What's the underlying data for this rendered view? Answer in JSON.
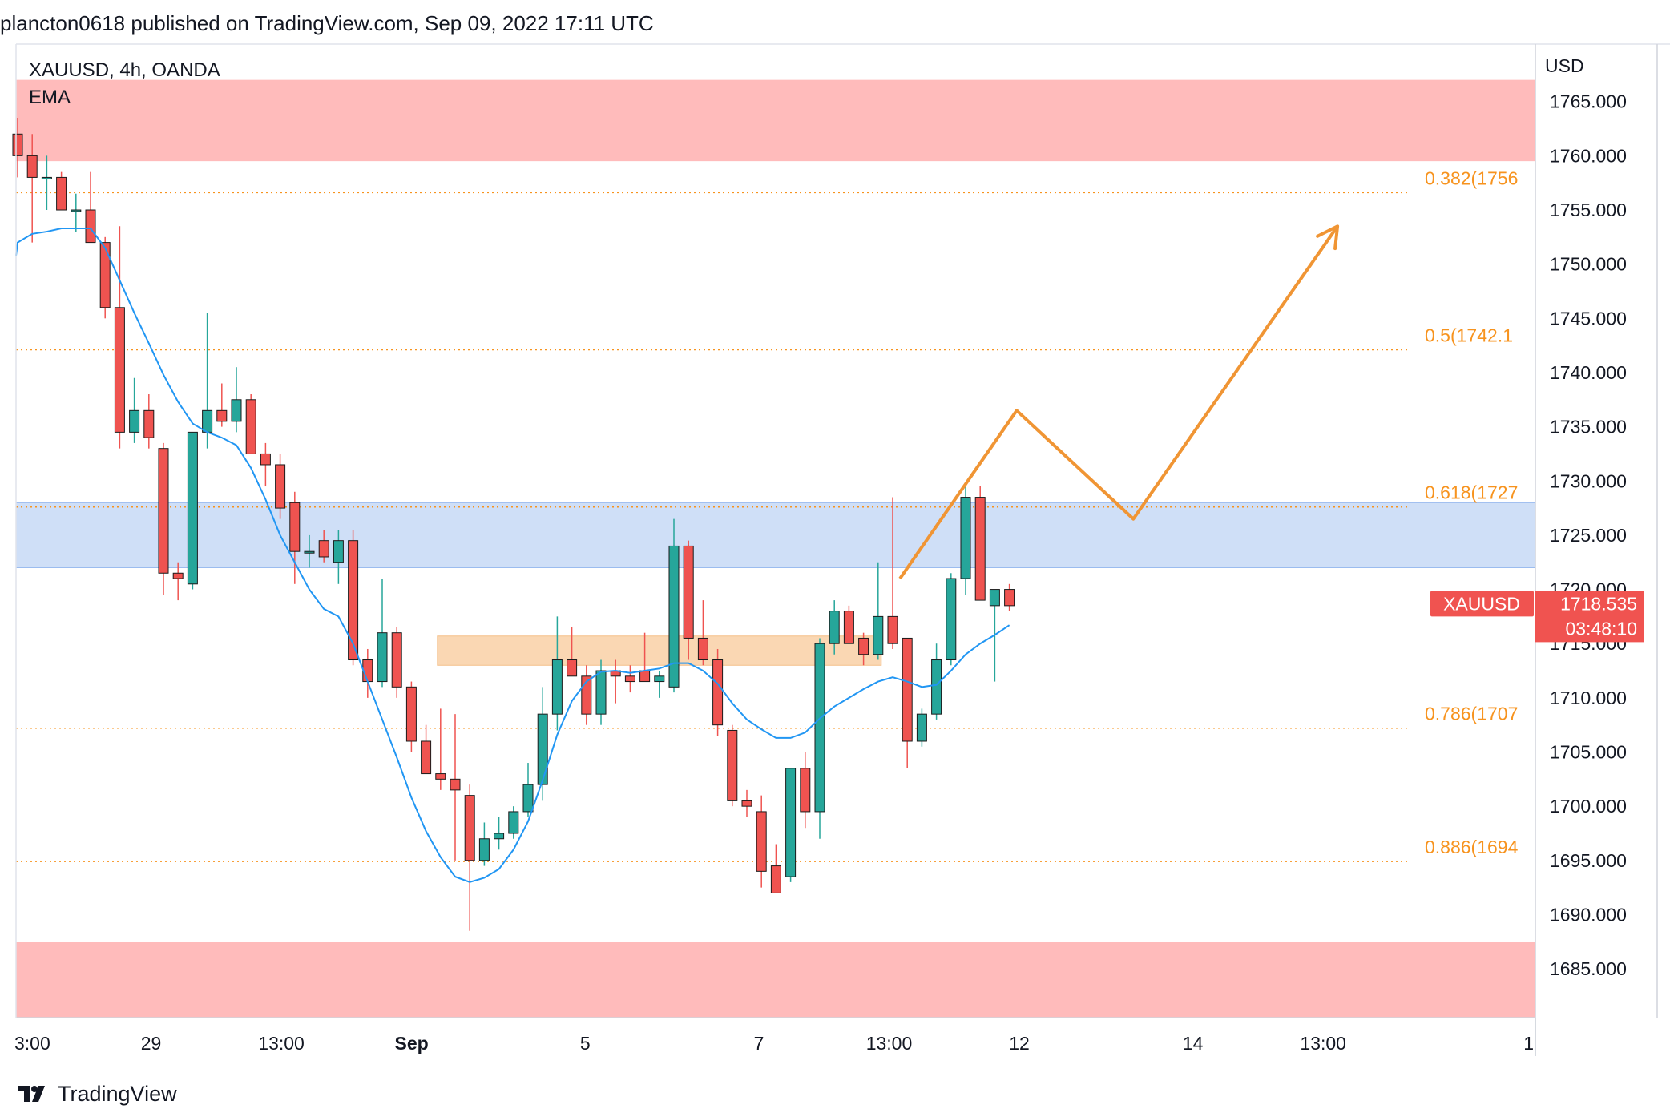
{
  "publication": {
    "text": "plancton0618 published on TradingView.com, Sep 09, 2022 17:11 UTC"
  },
  "branding": {
    "name": "TradingView"
  },
  "chart_data": {
    "type": "candlestick",
    "symbol_label": "XAUUSD, 4h, OANDA",
    "indicator_label": "EMA",
    "currency_label": "USD",
    "y_axis": {
      "range": [
        1680.5,
        1770.3
      ],
      "ticks": [
        1765,
        1760,
        1755,
        1750,
        1745,
        1740,
        1735,
        1730,
        1725,
        1720,
        1715,
        1710,
        1705,
        1700,
        1695,
        1690,
        1685
      ],
      "tick_labels": [
        "1765.000",
        "1760.000",
        "1755.000",
        "1750.000",
        "1745.000",
        "1740.000",
        "1735.000",
        "1730.000",
        "1725.000",
        "1720.000",
        "1715.000",
        "1710.000",
        "1705.000",
        "1700.000",
        "1695.000",
        "1690.000",
        "1685.000"
      ]
    },
    "x_axis": {
      "range": [
        0,
        105
      ],
      "labels": [
        {
          "text": "3:00",
          "x": 0.5,
          "bold": false
        },
        {
          "text": "29",
          "x": 10,
          "bold": false
        },
        {
          "text": "13:00",
          "x": 19,
          "bold": false
        },
        {
          "text": "Sep",
          "x": 28,
          "bold": true
        },
        {
          "text": "5",
          "x": 40,
          "bold": false
        },
        {
          "text": "7",
          "x": 52,
          "bold": false
        },
        {
          "text": "13:00",
          "x": 61,
          "bold": false
        },
        {
          "text": "12",
          "x": 70,
          "bold": false
        },
        {
          "text": "14",
          "x": 82,
          "bold": false
        },
        {
          "text": "13:00",
          "x": 91,
          "bold": false
        },
        {
          "text": "1",
          "x": 100,
          "bold": false
        }
      ]
    },
    "candles": [
      {
        "o": 1762.0,
        "h": 1763.5,
        "l": 1758.0,
        "c": 1760.0
      },
      {
        "o": 1760.0,
        "h": 1762.0,
        "l": 1752.0,
        "c": 1758.0
      },
      {
        "o": 1758.0,
        "h": 1760.0,
        "l": 1755.0,
        "c": 1758.0
      },
      {
        "o": 1758.0,
        "h": 1758.5,
        "l": 1755.0,
        "c": 1755.0
      },
      {
        "o": 1755.0,
        "h": 1756.5,
        "l": 1753.0,
        "c": 1755.0
      },
      {
        "o": 1755.0,
        "h": 1758.5,
        "l": 1752.0,
        "c": 1752.0
      },
      {
        "o": 1752.0,
        "h": 1752.5,
        "l": 1745.0,
        "c": 1746.0
      },
      {
        "o": 1746.0,
        "h": 1753.5,
        "l": 1733.0,
        "c": 1734.5
      },
      {
        "o": 1734.5,
        "h": 1739.5,
        "l": 1733.5,
        "c": 1736.5
      },
      {
        "o": 1736.5,
        "h": 1738.0,
        "l": 1733.0,
        "c": 1734.0
      },
      {
        "o": 1733.0,
        "h": 1733.5,
        "l": 1719.5,
        "c": 1721.5
      },
      {
        "o": 1721.5,
        "h": 1722.5,
        "l": 1719.0,
        "c": 1721.0
      },
      {
        "o": 1720.5,
        "h": 1734.0,
        "l": 1720.0,
        "c": 1734.5
      },
      {
        "o": 1734.5,
        "h": 1745.5,
        "l": 1733.0,
        "c": 1736.5
      },
      {
        "o": 1736.5,
        "h": 1739.0,
        "l": 1735.0,
        "c": 1735.5
      },
      {
        "o": 1735.5,
        "h": 1740.5,
        "l": 1734.5,
        "c": 1737.5
      },
      {
        "o": 1737.5,
        "h": 1738.0,
        "l": 1732.5,
        "c": 1732.5
      },
      {
        "o": 1732.5,
        "h": 1733.5,
        "l": 1729.5,
        "c": 1731.5
      },
      {
        "o": 1731.5,
        "h": 1732.5,
        "l": 1726.5,
        "c": 1727.5
      },
      {
        "o": 1728.0,
        "h": 1729.0,
        "l": 1720.5,
        "c": 1723.5
      },
      {
        "o": 1723.5,
        "h": 1725.0,
        "l": 1722.0,
        "c": 1723.5
      },
      {
        "o": 1724.5,
        "h": 1725.5,
        "l": 1722.5,
        "c": 1723.0
      },
      {
        "o": 1722.5,
        "h": 1725.5,
        "l": 1720.5,
        "c": 1724.5
      },
      {
        "o": 1724.5,
        "h": 1725.5,
        "l": 1713.0,
        "c": 1713.5
      },
      {
        "o": 1713.5,
        "h": 1714.5,
        "l": 1710.0,
        "c": 1711.5
      },
      {
        "o": 1711.5,
        "h": 1721.0,
        "l": 1711.0,
        "c": 1716.0
      },
      {
        "o": 1716.0,
        "h": 1716.5,
        "l": 1710.0,
        "c": 1711.0
      },
      {
        "o": 1711.0,
        "h": 1711.5,
        "l": 1705.0,
        "c": 1706.0
      },
      {
        "o": 1706.0,
        "h": 1707.5,
        "l": 1703.0,
        "c": 1703.0
      },
      {
        "o": 1703.0,
        "h": 1709.0,
        "l": 1701.5,
        "c": 1702.5
      },
      {
        "o": 1702.5,
        "h": 1708.5,
        "l": 1695.0,
        "c": 1701.5
      },
      {
        "o": 1701.0,
        "h": 1702.0,
        "l": 1688.5,
        "c": 1695.0
      },
      {
        "o": 1695.0,
        "h": 1698.5,
        "l": 1694.5,
        "c": 1697.0
      },
      {
        "o": 1697.0,
        "h": 1699.0,
        "l": 1696.0,
        "c": 1697.5
      },
      {
        "o": 1697.5,
        "h": 1700.0,
        "l": 1697.0,
        "c": 1699.5
      },
      {
        "o": 1699.5,
        "h": 1704.0,
        "l": 1699.0,
        "c": 1702.0
      },
      {
        "o": 1702.0,
        "h": 1711.0,
        "l": 1700.5,
        "c": 1708.5
      },
      {
        "o": 1708.5,
        "h": 1717.5,
        "l": 1707.0,
        "c": 1713.5
      },
      {
        "o": 1713.5,
        "h": 1716.5,
        "l": 1712.0,
        "c": 1712.0
      },
      {
        "o": 1712.0,
        "h": 1713.0,
        "l": 1707.5,
        "c": 1708.5
      },
      {
        "o": 1708.5,
        "h": 1713.5,
        "l": 1707.5,
        "c": 1712.5
      },
      {
        "o": 1712.5,
        "h": 1713.5,
        "l": 1709.5,
        "c": 1712.0
      },
      {
        "o": 1712.0,
        "h": 1713.0,
        "l": 1710.5,
        "c": 1711.5
      },
      {
        "o": 1712.5,
        "h": 1716.0,
        "l": 1711.5,
        "c": 1711.5
      },
      {
        "o": 1711.5,
        "h": 1712.5,
        "l": 1710.0,
        "c": 1712.0
      },
      {
        "o": 1711.0,
        "h": 1726.5,
        "l": 1710.5,
        "c": 1724.0
      },
      {
        "o": 1724.0,
        "h": 1724.5,
        "l": 1713.5,
        "c": 1715.5
      },
      {
        "o": 1715.5,
        "h": 1719.0,
        "l": 1713.0,
        "c": 1713.5
      },
      {
        "o": 1713.5,
        "h": 1714.5,
        "l": 1706.5,
        "c": 1707.5
      },
      {
        "o": 1707.0,
        "h": 1707.5,
        "l": 1700.0,
        "c": 1700.5
      },
      {
        "o": 1700.5,
        "h": 1701.5,
        "l": 1699.0,
        "c": 1700.0
      },
      {
        "o": 1699.5,
        "h": 1701.0,
        "l": 1692.5,
        "c": 1694.0
      },
      {
        "o": 1694.5,
        "h": 1696.5,
        "l": 1692.0,
        "c": 1692.0
      },
      {
        "o": 1693.5,
        "h": 1703.5,
        "l": 1693.0,
        "c": 1703.5
      },
      {
        "o": 1703.5,
        "h": 1705.0,
        "l": 1698.0,
        "c": 1699.5
      },
      {
        "o": 1699.5,
        "h": 1715.5,
        "l": 1697.0,
        "c": 1715.0
      },
      {
        "o": 1715.0,
        "h": 1719.0,
        "l": 1714.0,
        "c": 1718.0
      },
      {
        "o": 1718.0,
        "h": 1718.5,
        "l": 1715.0,
        "c": 1715.0
      },
      {
        "o": 1715.5,
        "h": 1716.0,
        "l": 1713.0,
        "c": 1714.0
      },
      {
        "o": 1714.0,
        "h": 1722.5,
        "l": 1713.5,
        "c": 1717.5
      },
      {
        "o": 1717.5,
        "h": 1728.5,
        "l": 1714.5,
        "c": 1715.0
      },
      {
        "o": 1715.5,
        "h": 1715.5,
        "l": 1703.5,
        "c": 1706.0
      },
      {
        "o": 1706.0,
        "h": 1709.0,
        "l": 1705.5,
        "c": 1708.5
      },
      {
        "o": 1708.5,
        "h": 1715.0,
        "l": 1708.0,
        "c": 1713.5
      },
      {
        "o": 1713.5,
        "h": 1721.5,
        "l": 1713.0,
        "c": 1721.0
      },
      {
        "o": 1721.0,
        "h": 1729.5,
        "l": 1719.5,
        "c": 1728.5
      },
      {
        "o": 1728.5,
        "h": 1729.5,
        "l": 1719.0,
        "c": 1719.0
      },
      {
        "o": 1718.5,
        "h": 1720.0,
        "l": 1711.5,
        "c": 1720.0
      },
      {
        "o": 1720.0,
        "h": 1720.5,
        "l": 1718.0,
        "c": 1718.5
      }
    ],
    "ema": [
      1752.0,
      1752.8,
      1753.0,
      1753.3,
      1753.3,
      1753.3,
      1751.5,
      1748.5,
      1745.5,
      1742.7,
      1739.8,
      1737.3,
      1735.3,
      1734.5,
      1734.0,
      1733.3,
      1731.2,
      1728.3,
      1725.0,
      1722.5,
      1720.0,
      1718.2,
      1717.5,
      1715.0,
      1711.5,
      1708.0,
      1704.5,
      1700.8,
      1697.7,
      1695.3,
      1693.5,
      1693.0,
      1693.4,
      1694.2,
      1696.0,
      1698.6,
      1702.4,
      1706.6,
      1709.7,
      1711.5,
      1712.4,
      1712.5,
      1712.3,
      1712.5,
      1712.7,
      1713.2,
      1713.2,
      1712.5,
      1711.3,
      1709.5,
      1708.0,
      1707.1,
      1706.3,
      1706.3,
      1706.8,
      1708.1,
      1709.2,
      1710.0,
      1710.8,
      1711.5,
      1711.9,
      1711.5,
      1711.0,
      1711.2,
      1712.5,
      1714.0,
      1715.0,
      1715.8,
      1716.7
    ],
    "resistance_zone": [
      1759.5,
      1767.0
    ],
    "support_zone_bottom": [
      1680.5,
      1687.5
    ],
    "blue_zone": [
      1722.0,
      1728.0
    ],
    "orange_zone": {
      "from_index": 29,
      "to_index": 59,
      "range": [
        1713.0,
        1715.7
      ]
    },
    "fib_levels": [
      {
        "label": "0.382(1756",
        "value": 1756.6
      },
      {
        "label": "0.5(1742.1",
        "value": 1742.1
      },
      {
        "label": "0.618(1727",
        "value": 1727.6
      },
      {
        "label": "0.786(1707",
        "value": 1707.2
      },
      {
        "label": "0.886(1694",
        "value": 1694.9
      }
    ],
    "projection": [
      {
        "x": 60.5,
        "y": 1721.0
      },
      {
        "x": 68.5,
        "y": 1736.5
      },
      {
        "x": 76.5,
        "y": 1726.5
      },
      {
        "x": 90.5,
        "y": 1753.5
      }
    ],
    "last_price": {
      "symbol": "XAUUSD",
      "price": "1718.535",
      "value": 1718.535,
      "countdown": "03:48:10"
    },
    "colors": {
      "up": "#26a69a",
      "down": "#ef5350",
      "ema": "#2196f3",
      "fib": "#f7931e",
      "projection": "#f09534",
      "resistance": "#ffbbbb",
      "blue_zone": "#cfdff7",
      "orange_zone": "#fad7b3",
      "price_badge": "#f05350"
    }
  }
}
